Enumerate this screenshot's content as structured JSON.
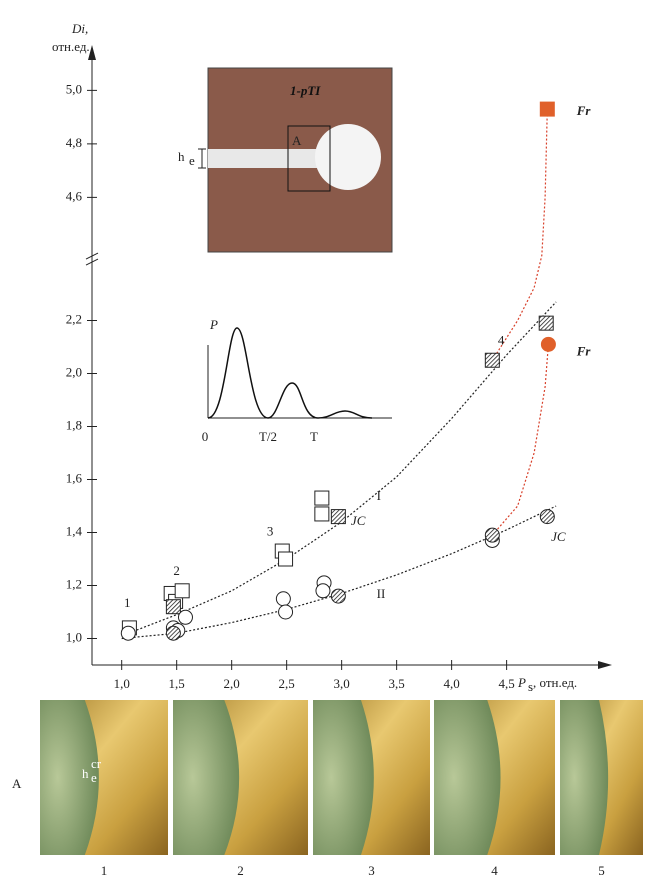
{
  "chart_data": {
    "type": "scatter",
    "y_label": {
      "main": "Di,",
      "unit": "отн.ед."
    },
    "x_label": {
      "main": "P",
      "sub": "s",
      "unit": ", отн.ед."
    },
    "xlim": [
      0.73,
      5.44
    ],
    "ylim": [
      0.9,
      5.05
    ],
    "ybreak": [
      2.28,
      4.52
    ],
    "xticks": [
      {
        "value": 1.0,
        "label": "1,0"
      },
      {
        "value": 1.5,
        "label": "1,5"
      },
      {
        "value": 2.0,
        "label": "2,0"
      },
      {
        "value": 2.5,
        "label": "2,5"
      },
      {
        "value": 3.0,
        "label": "3,0"
      },
      {
        "value": 3.5,
        "label": "3,5"
      },
      {
        "value": 4.0,
        "label": "4,0"
      },
      {
        "value": 4.5,
        "label": "4,5"
      }
    ],
    "yticks": [
      {
        "value": 1.0,
        "label": "1,0"
      },
      {
        "value": 1.2,
        "label": "1,2"
      },
      {
        "value": 1.4,
        "label": "1,4"
      },
      {
        "value": 1.6,
        "label": "1,6"
      },
      {
        "value": 1.8,
        "label": "1,8"
      },
      {
        "value": 2.0,
        "label": "2,0"
      },
      {
        "value": 2.2,
        "label": "2,2"
      },
      {
        "value": 4.6,
        "label": "4,6"
      },
      {
        "value": 4.8,
        "label": "4,8"
      },
      {
        "value": 5.0,
        "label": "5,0"
      }
    ],
    "series": [
      {
        "marker": "square",
        "fill": "open",
        "color": "#222222",
        "x": [
          1.07,
          1.45,
          1.49,
          1.55,
          2.46,
          2.49,
          2.82,
          2.82
        ],
        "values": [
          1.04,
          1.17,
          1.14,
          1.18,
          1.33,
          1.3,
          1.53,
          1.47
        ]
      },
      {
        "marker": "square",
        "fill": "hatched",
        "color": "#222222",
        "x": [
          1.47,
          2.97,
          4.37,
          4.86
        ],
        "values": [
          1.12,
          1.46,
          2.05,
          2.19
        ]
      },
      {
        "marker": "circle",
        "fill": "open",
        "color": "#222222",
        "x": [
          1.06,
          1.47,
          1.51,
          1.58,
          2.47,
          2.49,
          2.84,
          2.83,
          4.37
        ],
        "values": [
          1.02,
          1.04,
          1.03,
          1.08,
          1.15,
          1.1,
          1.21,
          1.18,
          1.37
        ]
      },
      {
        "marker": "circle",
        "fill": "hatched",
        "color": "#222222",
        "x": [
          1.47,
          2.97,
          4.37,
          4.87
        ],
        "values": [
          1.02,
          1.16,
          1.39,
          1.46
        ]
      },
      {
        "marker": "square",
        "fill": "solid",
        "color": "#e0602a",
        "x": [
          4.87
        ],
        "values": [
          4.93
        ]
      },
      {
        "marker": "circle",
        "fill": "solid",
        "color": "#e0602a",
        "x": [
          4.88
        ],
        "values": [
          2.11
        ]
      }
    ],
    "curves": [
      {
        "label": "I",
        "color": "#222222",
        "x": [
          1.0,
          1.5,
          2.0,
          2.5,
          3.0,
          3.5,
          4.0,
          4.5,
          4.95
        ],
        "values": [
          1.01,
          1.09,
          1.18,
          1.3,
          1.44,
          1.61,
          1.83,
          2.07,
          2.27
        ]
      },
      {
        "label": "II",
        "color": "#222222",
        "x": [
          1.0,
          1.5,
          2.0,
          2.5,
          3.0,
          3.5,
          4.0,
          4.5,
          4.95
        ],
        "values": [
          1.0,
          1.02,
          1.06,
          1.11,
          1.17,
          1.24,
          1.32,
          1.41,
          1.5
        ]
      },
      {
        "color": "#d8402a",
        "x": [
          4.37,
          4.6,
          4.75,
          4.85,
          4.88
        ],
        "values": [
          1.39,
          1.5,
          1.7,
          1.95,
          2.11
        ]
      },
      {
        "color": "#d8402a",
        "x": [
          4.37,
          4.6,
          4.75,
          4.82,
          4.85,
          4.87
        ],
        "values": [
          2.05,
          2.2,
          2.6,
          3.5,
          4.6,
          4.93
        ]
      }
    ],
    "annotations": [
      {
        "text": "1",
        "x": 1.05,
        "y": 1.13
      },
      {
        "text": "2",
        "x": 1.5,
        "y": 1.25
      },
      {
        "text": "3",
        "x": 2.35,
        "y": 1.4
      },
      {
        "text": "4",
        "x": 4.45,
        "y": 2.12
      },
      {
        "text": "JC",
        "x": 3.15,
        "y": 1.44
      },
      {
        "text": "JC",
        "x": 4.97,
        "y": 1.38
      },
      {
        "text": "Fr",
        "x": 5.2,
        "y": 4.92
      },
      {
        "text": "Fr",
        "x": 5.2,
        "y": 2.08
      }
    ],
    "inset_pulse": {
      "y_label": "P",
      "ticks": [
        "0",
        "T/2",
        "T"
      ]
    },
    "inset_photo": {
      "handwriting": "1-pTI",
      "notch_label": "h",
      "notch_sub": "e",
      "zone_label": "A"
    },
    "photo_strip": {
      "row_label": "A",
      "crack_label": "h",
      "crack_sub": "e",
      "crack_sup": "cr",
      "labels": [
        "1",
        "2",
        "3",
        "4",
        "5"
      ]
    }
  }
}
